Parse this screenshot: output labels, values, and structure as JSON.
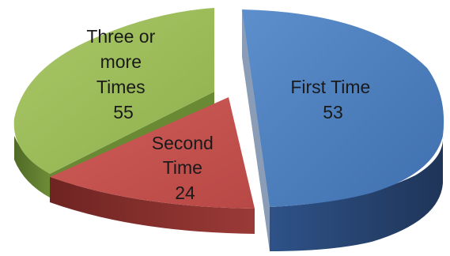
{
  "chart_data": {
    "type": "pie",
    "style": "3d-exploded",
    "slices": [
      {
        "name": "First Time",
        "value": 53,
        "color_top": "#4f81bd",
        "color_side": "#24406c",
        "label_lines": [
          "First Time",
          "53"
        ]
      },
      {
        "name": "Second Time",
        "value": 24,
        "color_top": "#c0504d",
        "color_side": "#7a2c2a",
        "label_lines": [
          "Second",
          "Time",
          "24"
        ]
      },
      {
        "name": "Three or more Times",
        "value": 55,
        "color_top": "#9bbb59",
        "color_side": "#5e7a2e",
        "label_lines": [
          "Three or",
          "more",
          "Times",
          "55"
        ]
      }
    ]
  }
}
